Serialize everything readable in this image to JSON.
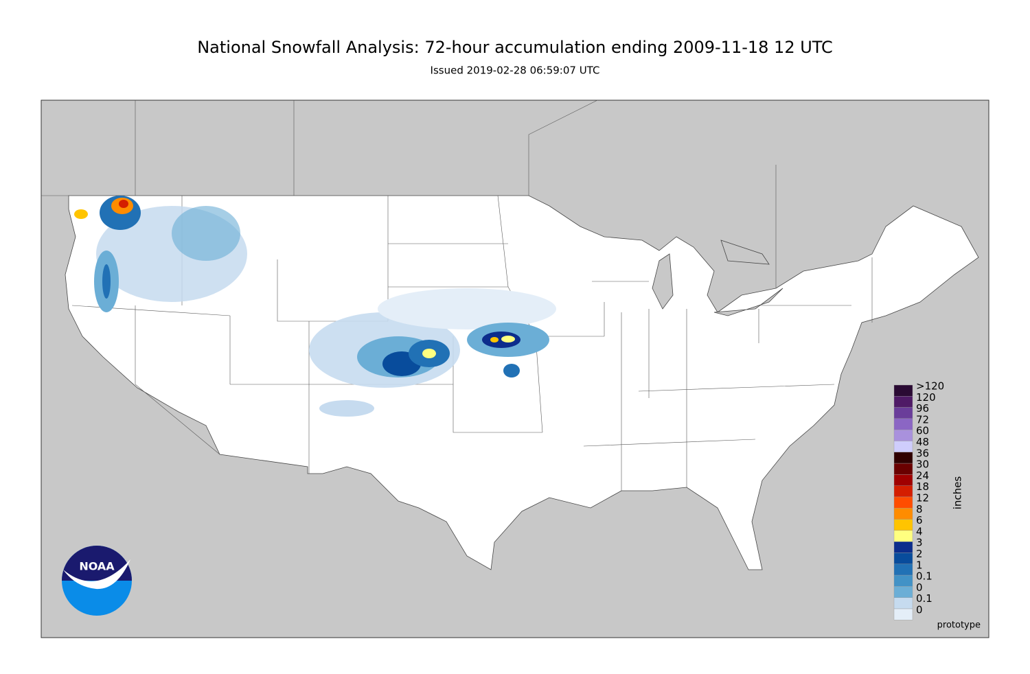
{
  "title": "National Snowfall Analysis: 72-hour accumulation ending 2009-11-18 12 UTC",
  "subtitle": "Issued 2019-02-28 06:59:07 UTC",
  "legend": {
    "title": "inches",
    "bins": [
      {
        "label": ">120",
        "color": "#2a0a33"
      },
      {
        "label": "120",
        "color": "#4f1a66"
      },
      {
        "label": "96",
        "color": "#6a3d9a"
      },
      {
        "label": "72",
        "color": "#8b66c4"
      },
      {
        "label": "60",
        "color": "#a991dd"
      },
      {
        "label": "48",
        "color": "#cfcdfc"
      },
      {
        "label": "36",
        "color": "#300000"
      },
      {
        "label": "30",
        "color": "#6a0000"
      },
      {
        "label": "24",
        "color": "#a00000"
      },
      {
        "label": "18",
        "color": "#d41e00"
      },
      {
        "label": "12",
        "color": "#ff4d00"
      },
      {
        "label": "8",
        "color": "#ff8c00"
      },
      {
        "label": "6",
        "color": "#ffc400"
      },
      {
        "label": "4",
        "color": "#ffff80"
      },
      {
        "label": "3",
        "color": "#0c2d8c"
      },
      {
        "label": "2",
        "color": "#084c9c"
      },
      {
        "label": "1",
        "color": "#2171b5"
      },
      {
        "label": "0.1",
        "color": "#4292c6"
      },
      {
        "label": "0",
        "color": "#6baed6"
      }
    ],
    "bottom": [
      {
        "label": "0.1",
        "color": "#c6dbef"
      },
      {
        "label": "0",
        "color": "#e4eef8"
      }
    ]
  },
  "logo": "NOAA",
  "footnote": "prototype"
}
